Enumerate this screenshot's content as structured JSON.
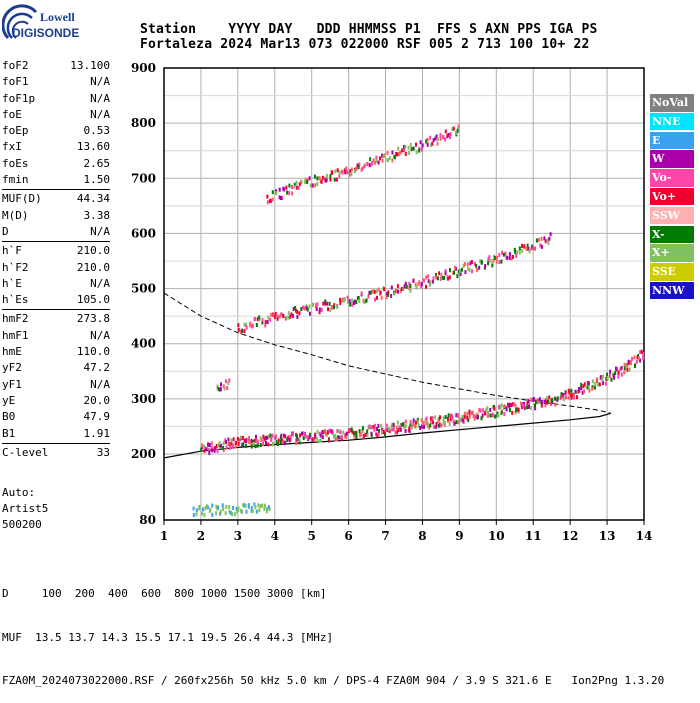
{
  "logo": {
    "line1": "Lowell",
    "line2": "DIGISONDE"
  },
  "header": {
    "line1": "Station    YYYY DAY   DDD HHMMSS P1  FFS S AXN PPS IGA PS",
    "line2": "Fortaleza 2024 Mar13 073 022000 RSF 005 2 713 100 10+ 22"
  },
  "params": {
    "group1": [
      {
        "k": "foF2",
        "v": "13.100"
      },
      {
        "k": "foF1",
        "v": "N/A"
      },
      {
        "k": "foF1p",
        "v": "N/A"
      },
      {
        "k": "foE",
        "v": "N/A"
      },
      {
        "k": "foEp",
        "v": "0.53"
      },
      {
        "k": "fxI",
        "v": "13.60"
      },
      {
        "k": "foEs",
        "v": "2.65"
      },
      {
        "k": "fmin",
        "v": "1.50"
      }
    ],
    "group2": [
      {
        "k": "MUF(D)",
        "v": "44.34"
      },
      {
        "k": "M(D)",
        "v": "3.38"
      },
      {
        "k": "D",
        "v": "N/A"
      }
    ],
    "group3": [
      {
        "k": "h`F",
        "v": "210.0"
      },
      {
        "k": "h`F2",
        "v": "210.0"
      },
      {
        "k": "h`E",
        "v": "N/A"
      },
      {
        "k": "h`Es",
        "v": "105.0"
      }
    ],
    "group4": [
      {
        "k": "hmF2",
        "v": "273.8"
      },
      {
        "k": "hmF1",
        "v": "N/A"
      },
      {
        "k": "hmE",
        "v": "110.0"
      },
      {
        "k": "yF2",
        "v": "47.2"
      },
      {
        "k": "yF1",
        "v": "N/A"
      },
      {
        "k": "yE",
        "v": "20.0"
      },
      {
        "k": "B0",
        "v": "47.9"
      },
      {
        "k": "B1",
        "v": "1.91"
      }
    ],
    "group5": [
      {
        "k": "C-level",
        "v": "33"
      }
    ]
  },
  "autoscaling": {
    "line1": "Auto:",
    "line2": "Artist5",
    "line3": "500200"
  },
  "legend": [
    {
      "label": "NoVal",
      "bg": "#808080",
      "fg": "#ffffff"
    },
    {
      "label": "NNE",
      "bg": "#00e5ff",
      "fg": "#ffffff"
    },
    {
      "label": "E",
      "bg": "#3aa0f0",
      "fg": "#ffffff"
    },
    {
      "label": "W",
      "bg": "#aa00aa",
      "fg": "#ffffff"
    },
    {
      "label": "Vo-",
      "bg": "#ff44aa",
      "fg": "#ffffff"
    },
    {
      "label": "Vo+",
      "bg": "#f00030",
      "fg": "#ffffff"
    },
    {
      "label": "SSW",
      "bg": "#ffb0b0",
      "fg": "#ffffff"
    },
    {
      "label": "X-",
      "bg": "#007a00",
      "fg": "#ffffff"
    },
    {
      "label": "X+",
      "bg": "#80c060",
      "fg": "#ffffff"
    },
    {
      "label": "SSE",
      "bg": "#cccc00",
      "fg": "#ffffff"
    },
    {
      "label": "NNW",
      "bg": "#1a10c8",
      "fg": "#ffffff"
    }
  ],
  "footer": {
    "line1": "D     100  200  400  600  800 1000 1500 3000 [km]",
    "line2": "MUF  13.5 13.7 14.3 15.5 17.1 19.5 26.4 44.3 [MHz]",
    "line3": "FZA0M_2024073022000.RSF / 260fx256h 50 kHz 5.0 km / DPS-4 FZA0M 904 / 3.9 S 321.6 E   Ion2Png 1.3.20"
  },
  "chart_data": {
    "type": "scatter",
    "xticks": [
      "1",
      "2",
      "3",
      "4",
      "5",
      "6",
      "7",
      "8",
      "9",
      "10",
      "11",
      "12",
      "13",
      "14"
    ],
    "yticks": [
      "80",
      "200",
      "300",
      "400",
      "500",
      "600",
      "700",
      "800",
      "900"
    ],
    "xlim": [
      1,
      14
    ],
    "ylim": [
      80,
      900
    ],
    "grid": true,
    "legend_position": "right",
    "traces": [
      {
        "name": "F2 1st hop",
        "points": [
          [
            2.0,
            215
          ],
          [
            2.5,
            222
          ],
          [
            3.0,
            228
          ],
          [
            4.0,
            233
          ],
          [
            5.0,
            238
          ],
          [
            6.0,
            244
          ],
          [
            7.0,
            252
          ],
          [
            8.0,
            262
          ],
          [
            9.0,
            272
          ],
          [
            10.0,
            285
          ],
          [
            11.0,
            298
          ],
          [
            11.5,
            304
          ],
          [
            12.0,
            315
          ],
          [
            12.5,
            330
          ],
          [
            13.0,
            345
          ],
          [
            13.5,
            365
          ],
          [
            14.0,
            390
          ]
        ]
      },
      {
        "name": "F2 2nd hop",
        "points": [
          [
            3.0,
            435
          ],
          [
            3.5,
            445
          ],
          [
            4.0,
            455
          ],
          [
            5.0,
            470
          ],
          [
            6.0,
            485
          ],
          [
            7.0,
            500
          ],
          [
            8.0,
            518
          ],
          [
            9.0,
            540
          ],
          [
            10.0,
            560
          ],
          [
            11.0,
            585
          ],
          [
            11.5,
            600
          ]
        ]
      },
      {
        "name": "F2 3rd hop",
        "points": [
          [
            3.8,
            670
          ],
          [
            4.5,
            690
          ],
          [
            5.0,
            700
          ],
          [
            6.0,
            720
          ],
          [
            7.0,
            745
          ],
          [
            8.0,
            768
          ],
          [
            9.0,
            795
          ]
        ]
      },
      {
        "name": "Es",
        "points": [
          [
            1.8,
            105
          ],
          [
            2.3,
            105
          ],
          [
            2.8,
            106
          ],
          [
            3.4,
            107
          ],
          [
            3.9,
            108
          ]
        ]
      },
      {
        "name": "Es 2nd hop",
        "points": [
          [
            2.4,
            330
          ],
          [
            2.8,
            333
          ]
        ]
      }
    ],
    "profile_solid": [
      [
        1,
        193
      ],
      [
        2,
        205
      ],
      [
        3,
        212
      ],
      [
        4,
        217
      ],
      [
        5,
        221
      ],
      [
        6,
        225
      ],
      [
        7,
        231
      ],
      [
        8,
        238
      ],
      [
        9,
        244
      ],
      [
        10,
        250
      ],
      [
        11,
        256
      ],
      [
        12,
        262
      ],
      [
        12.8,
        268
      ],
      [
        13.1,
        273.8
      ]
    ],
    "profile_dashed": [
      [
        1,
        492
      ],
      [
        2,
        450
      ],
      [
        3,
        420
      ],
      [
        4,
        398
      ],
      [
        5,
        380
      ],
      [
        6,
        360
      ],
      [
        7,
        345
      ],
      [
        8,
        330
      ],
      [
        9,
        318
      ],
      [
        10,
        306
      ],
      [
        11,
        296
      ],
      [
        12,
        287
      ],
      [
        12.8,
        279
      ],
      [
        13.1,
        273.8
      ]
    ]
  }
}
